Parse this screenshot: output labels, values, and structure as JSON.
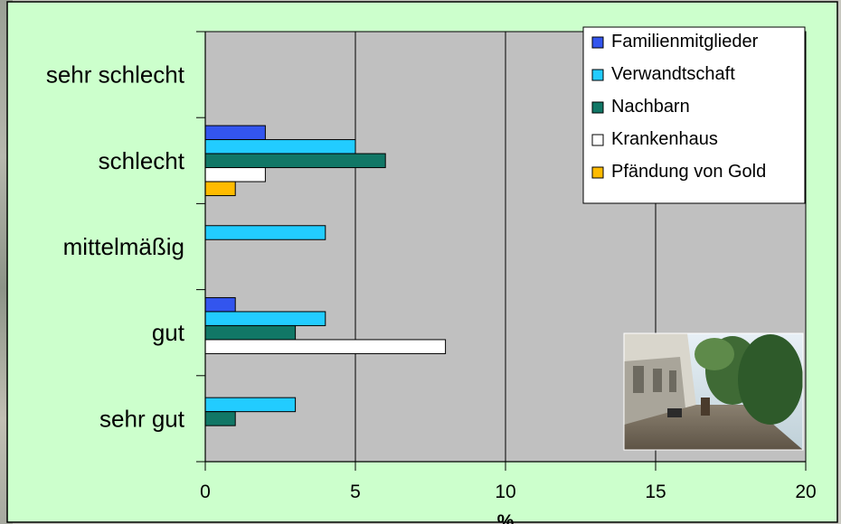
{
  "colors": {
    "background": "#ccffcc",
    "plot_area": "#c0c0c0",
    "border": "#000000",
    "gridline": "#000000"
  },
  "chart_data": {
    "type": "bar",
    "orientation": "horizontal",
    "categories": [
      "sehr gut",
      "gut",
      "mittelmäßig",
      "schlecht",
      "sehr schlecht"
    ],
    "series": [
      {
        "name": "Familienmitglieder",
        "color": "#3355ee",
        "values": [
          0,
          1,
          0,
          2,
          0
        ]
      },
      {
        "name": "Verwandtschaft",
        "color": "#22ccff",
        "values": [
          3,
          4,
          4,
          5,
          0
        ]
      },
      {
        "name": "Nachbarn",
        "color": "#117766",
        "values": [
          1,
          3,
          0,
          6,
          0
        ]
      },
      {
        "name": "Krankenhaus",
        "color": "#ffffff",
        "values": [
          0,
          8,
          0,
          2,
          0
        ]
      },
      {
        "name": "Pfändung von Gold",
        "color": "#ffbb00",
        "values": [
          0,
          0,
          0,
          1,
          0
        ]
      }
    ],
    "xlim": [
      0,
      20
    ],
    "xticks": [
      "0",
      "5",
      "10",
      "15",
      "20"
    ],
    "xlabel": "%",
    "ylabel": "",
    "grid": "vertical",
    "legend_position": "top-right",
    "inset_photo": "street-photo"
  }
}
